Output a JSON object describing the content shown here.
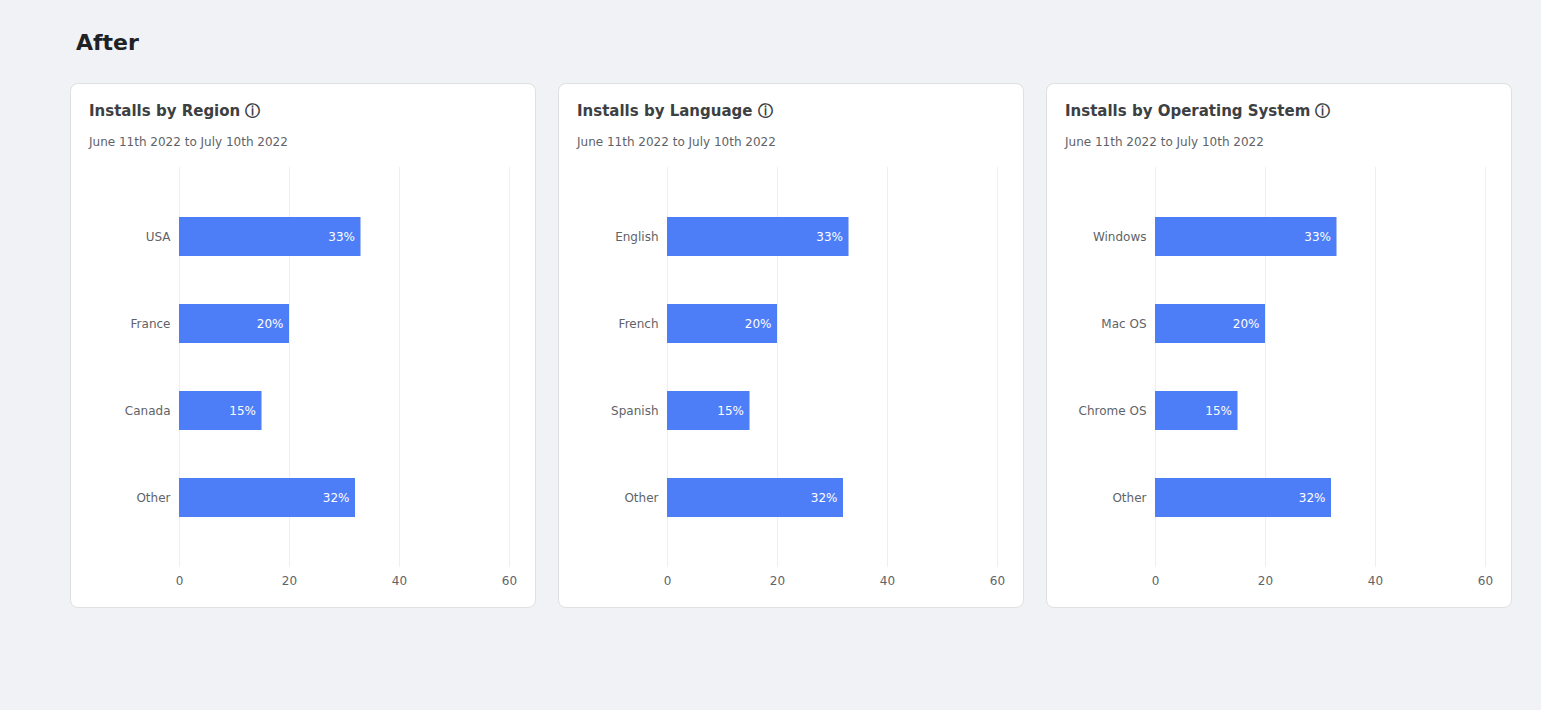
{
  "title": "After",
  "chart_data": [
    {
      "type": "bar",
      "orientation": "horizontal",
      "title": "Installs by Region ⓘ",
      "subtitle": "June 11th 2022 to July 10th 2022",
      "categories": [
        "USA",
        "France",
        "Canada",
        "Other"
      ],
      "values": [
        33,
        20,
        15,
        32
      ],
      "value_labels": [
        "33%",
        "20%",
        "15%",
        "32%"
      ],
      "data_labels": true,
      "color": "#4d7ef7",
      "xlim": [
        0,
        60
      ],
      "xticks": [
        0,
        20,
        40,
        60
      ],
      "grid": true
    },
    {
      "type": "bar",
      "orientation": "horizontal",
      "title": "Installs by Language ⓘ",
      "subtitle": "June 11th 2022 to July 10th 2022",
      "categories": [
        "English",
        "French",
        "Spanish",
        "Other"
      ],
      "values": [
        33,
        20,
        15,
        32
      ],
      "value_labels": [
        "33%",
        "20%",
        "15%",
        "32%"
      ],
      "data_labels": true,
      "color": "#4d7ef7",
      "xlim": [
        0,
        60
      ],
      "xticks": [
        0,
        20,
        40,
        60
      ],
      "grid": true
    },
    {
      "type": "bar",
      "orientation": "horizontal",
      "title": "Installs by Operating System ⓘ",
      "subtitle": "June 11th 2022 to July 10th 2022",
      "categories": [
        "Windows",
        "Mac OS",
        "Chrome OS",
        "Other"
      ],
      "values": [
        33,
        20,
        15,
        32
      ],
      "value_labels": [
        "33%",
        "20%",
        "15%",
        "32%"
      ],
      "data_labels": true,
      "color": "#4d7ef7",
      "xlim": [
        0,
        60
      ],
      "xticks": [
        0,
        20,
        40,
        60
      ],
      "grid": true
    }
  ]
}
